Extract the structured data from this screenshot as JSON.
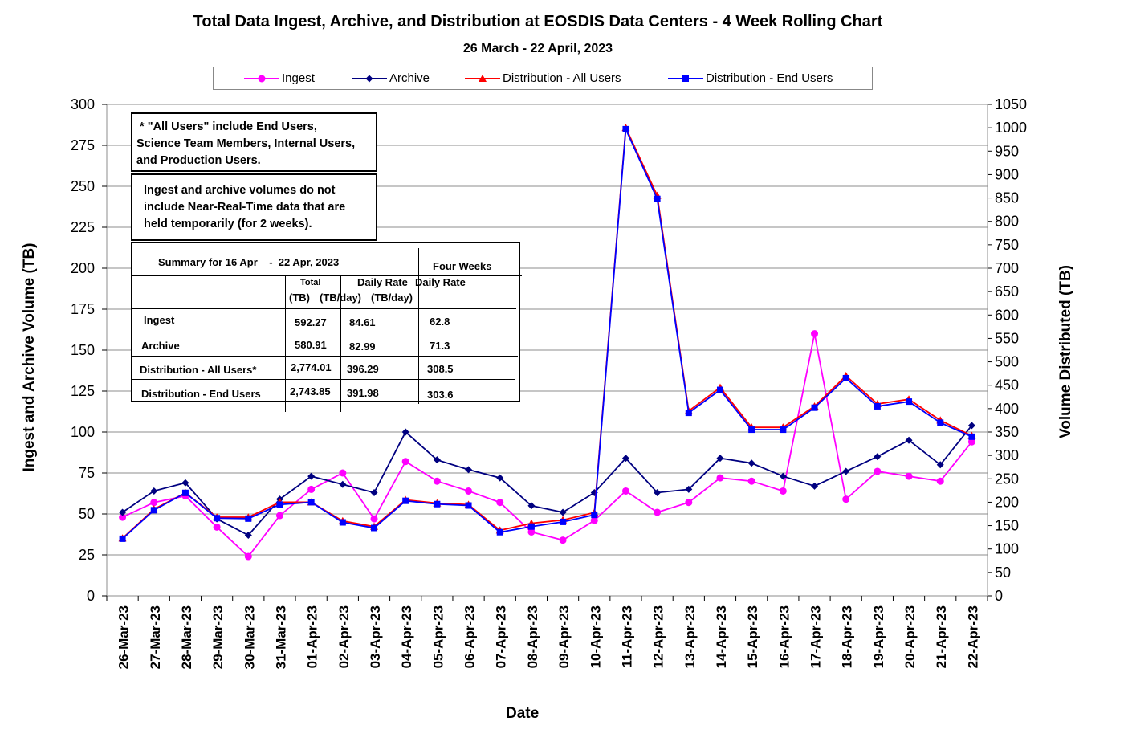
{
  "title": "Total Data Ingest, Archive, and Distribution at EOSDIS Data Centers - 4 Week Rolling Chart",
  "subtitle": "26 March    -  22 April, 2023",
  "notes": {
    "all_users_1": " * \"All Users\" include End Users,",
    "all_users_2": "Science Team Members, Internal Users,",
    "all_users_3": "and Production Users.",
    "nrt_1": "Ingest and archive volumes do not",
    "nrt_2": "include Near-Real-Time data that are",
    "nrt_3": "held temporarily (for 2 weeks)."
  },
  "summary": {
    "title": "Summary for 16 Apr    -  22 Apr, 2023",
    "four_weeks": "Four Weeks",
    "col_total_1": "Total",
    "col_total_2": "(TB)",
    "col_daily": "Daily Rate",
    "col_daily_unit": "(TB/day)",
    "col_four_daily": "Daily Rate",
    "col_four_unit": "(TB/day)",
    "rows": [
      {
        "label": "Ingest",
        "total": "592.27",
        "daily": "84.61",
        "four": "62.8"
      },
      {
        "label": "Archive",
        "total": "580.91",
        "daily": "82.99",
        "four": "71.3"
      },
      {
        "label": "Distribution - All Users*",
        "total": "2,774.01",
        "daily": "396.29",
        "four": "308.5"
      },
      {
        "label": "Distribution - End Users",
        "total": "2,743.85",
        "daily": "391.98",
        "four": "303.6"
      }
    ]
  },
  "chart_data": {
    "type": "line",
    "title": "Total Data Ingest, Archive, and Distribution at EOSDIS Data Centers - 4 Week Rolling Chart",
    "subtitle": "26 March    -  22 April, 2023",
    "xlabel": "Date",
    "ylabel": "Ingest and Archive Volume (TB)",
    "y2label": "Volume Distributed (TB)",
    "ylim": [
      0,
      300
    ],
    "y2lim": [
      0,
      1050
    ],
    "yticks": [
      0,
      25,
      50,
      75,
      100,
      125,
      150,
      175,
      200,
      225,
      250,
      275,
      300
    ],
    "y2ticks": [
      0,
      50,
      100,
      150,
      200,
      250,
      300,
      350,
      400,
      450,
      500,
      550,
      600,
      650,
      700,
      750,
      800,
      850,
      900,
      950,
      1000,
      1050
    ],
    "grid": true,
    "legend_position": "top",
    "categories": [
      "26-Mar-23",
      "27-Mar-23",
      "28-Mar-23",
      "29-Mar-23",
      "30-Mar-23",
      "31-Mar-23",
      "01-Apr-23",
      "02-Apr-23",
      "03-Apr-23",
      "04-Apr-23",
      "05-Apr-23",
      "06-Apr-23",
      "07-Apr-23",
      "08-Apr-23",
      "09-Apr-23",
      "10-Apr-23",
      "11-Apr-23",
      "12-Apr-23",
      "13-Apr-23",
      "14-Apr-23",
      "15-Apr-23",
      "16-Apr-23",
      "17-Apr-23",
      "18-Apr-23",
      "19-Apr-23",
      "20-Apr-23",
      "21-Apr-23",
      "22-Apr-23"
    ],
    "series": [
      {
        "name": "Ingest",
        "axis": "left",
        "color": "#ff00ff",
        "marker": "circle",
        "values": [
          48,
          57,
          61,
          42,
          24,
          49,
          65,
          75,
          47,
          82,
          70,
          64,
          57,
          39,
          34,
          46,
          64,
          51,
          57,
          72,
          70,
          64,
          160,
          59,
          76,
          73,
          70,
          94
        ]
      },
      {
        "name": "Archive",
        "axis": "left",
        "color": "#000080",
        "marker": "diamond",
        "values": [
          51,
          64,
          69,
          47,
          37,
          59,
          73,
          68,
          63,
          100,
          83,
          77,
          72,
          55,
          51,
          63,
          84,
          63,
          65,
          84,
          81,
          73,
          67,
          76,
          85,
          95,
          80,
          104
        ]
      },
      {
        "name": "Distribution - All Users",
        "axis": "right",
        "color": "#ff0000",
        "marker": "triangle",
        "values": [
          123,
          185,
          220,
          168,
          168,
          200,
          200,
          160,
          148,
          205,
          198,
          195,
          140,
          155,
          162,
          178,
          1000,
          855,
          395,
          445,
          360,
          360,
          405,
          470,
          410,
          420,
          375,
          342
        ]
      },
      {
        "name": "Distribution - End Users",
        "axis": "right",
        "color": "#0000ff",
        "marker": "square",
        "values": [
          122,
          183,
          220,
          166,
          165,
          195,
          200,
          157,
          145,
          203,
          196,
          193,
          136,
          148,
          158,
          173,
          997,
          848,
          391,
          440,
          355,
          355,
          402,
          465,
          405,
          415,
          370,
          340
        ]
      }
    ]
  }
}
